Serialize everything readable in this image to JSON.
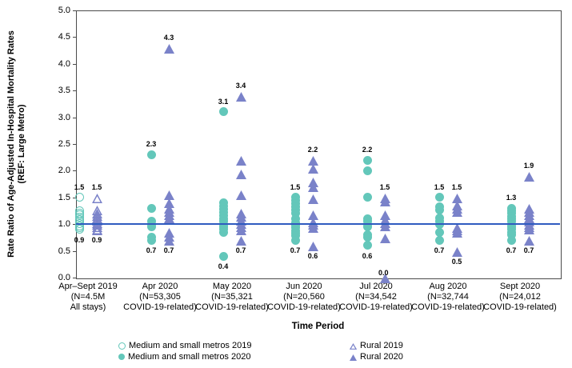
{
  "chart_data": {
    "type": "scatter",
    "title": "",
    "ylabel_line1": "Rate Ratio of Age-Adjusted In-Hospital Mortality Rates",
    "ylabel_line2": "(REF: Large Metro)",
    "xlabel": "Time Period",
    "ylim": [
      0.0,
      5.0
    ],
    "yticks": [
      "5.0",
      "4.5",
      "4.0",
      "3.5",
      "3.0",
      "2.5",
      "2.0",
      "1.5",
      "1.0",
      "0.5",
      "0.0"
    ],
    "reference_line_y": 1.0,
    "grid": false,
    "legend_position": "bottom",
    "colors": {
      "metro": "#63c7ba",
      "rural": "#7a82c9",
      "reference_line": "#2f5bc0",
      "axis": "#4a4a4a"
    },
    "series_styles": {
      "metro-2019": {
        "marker": "circle",
        "filled": false,
        "color_key": "metro"
      },
      "metro-2020": {
        "marker": "circle",
        "filled": true,
        "color_key": "metro"
      },
      "rural-2019": {
        "marker": "triangle",
        "filled": false,
        "color_key": "rural"
      },
      "rural-2020": {
        "marker": "triangle",
        "filled": true,
        "color_key": "rural"
      }
    },
    "legend": [
      {
        "series": "metro-2019",
        "label": "Medium and small metros 2019"
      },
      {
        "series": "metro-2020",
        "label": "Medium and small metros 2020"
      },
      {
        "series": "rural-2019",
        "label": "Rural 2019"
      },
      {
        "series": "rural-2020",
        "label": "Rural 2020"
      }
    ],
    "groups": [
      {
        "label_lines": [
          "Apr–Sept 2019",
          "(N=4.5M",
          "All stays)"
        ],
        "series": [
          {
            "id": "metro-2019",
            "values": [
              1.5,
              1.25,
              1.21,
              1.17,
              1.13,
              1.09,
              1.05,
              1.01,
              0.97,
              0.93,
              0.9
            ],
            "max_label": "1.5",
            "min_label": "0.9"
          },
          {
            "id": "rural-2019",
            "values": [
              1.5,
              1.27,
              1.22,
              1.17,
              1.12,
              1.08,
              1.04,
              1.0,
              0.96,
              0.92,
              0.9
            ],
            "max_label": "1.5",
            "min_label": "0.9"
          }
        ]
      },
      {
        "label_lines": [
          "Apr 2020",
          "(N=53,305",
          "COVID-19-related)"
        ],
        "series": [
          {
            "id": "metro-2020",
            "values": [
              2.3,
              1.3,
              1.05,
              1.0,
              0.95,
              0.75,
              0.7
            ],
            "max_label": "2.3",
            "min_label": "0.7"
          },
          {
            "id": "rural-2020",
            "values": [
              4.3,
              1.55,
              1.4,
              1.3,
              1.24,
              1.18,
              1.12,
              0.85,
              0.78,
              0.7
            ],
            "max_label": "4.3",
            "min_label": "0.7"
          }
        ]
      },
      {
        "label_lines": [
          "May 2020",
          "(N=35,321",
          "COVID-19-related)"
        ],
        "series": [
          {
            "id": "metro-2020",
            "values": [
              3.1,
              1.4,
              1.34,
              1.28,
              1.22,
              1.16,
              1.1,
              1.05,
              1.0,
              0.95,
              0.9,
              0.85,
              0.4
            ],
            "max_label": "3.1",
            "min_label": "0.4"
          },
          {
            "id": "rural-2020",
            "values": [
              3.4,
              2.2,
              1.95,
              1.55,
              1.22,
              1.15,
              1.08,
              1.02,
              0.96,
              0.9,
              0.7
            ],
            "max_label": "3.4",
            "min_label": "0.7"
          }
        ]
      },
      {
        "label_lines": [
          "Jun 2020",
          "(N=20,560",
          "COVID-19-related)"
        ],
        "series": [
          {
            "id": "metro-2020",
            "values": [
              1.5,
              1.44,
              1.38,
              1.32,
              1.26,
              1.2,
              1.1,
              1.03,
              0.98,
              0.93,
              0.88,
              0.83,
              0.78,
              0.7
            ],
            "max_label": "1.5",
            "min_label": "0.7"
          },
          {
            "id": "rural-2020",
            "values": [
              2.2,
              2.05,
              1.8,
              1.7,
              1.48,
              1.18,
              1.05,
              1.0,
              0.95,
              0.6
            ],
            "max_label": "2.2",
            "min_label": "0.6"
          }
        ]
      },
      {
        "label_lines": [
          "Jul 2020",
          "(N=34,542",
          "COVID-19-related)"
        ],
        "series": [
          {
            "id": "metro-2020",
            "values": [
              2.2,
              2.0,
              1.5,
              1.1,
              1.05,
              1.0,
              0.95,
              0.8,
              0.75,
              0.6
            ],
            "max_label": "2.2",
            "min_label": "0.6"
          },
          {
            "id": "rural-2020",
            "values": [
              1.5,
              1.44,
              1.18,
              1.1,
              1.04,
              0.98,
              0.75,
              0.0
            ],
            "max_label": "1.5",
            "min_label": "0.0",
            "min_label_side": "right"
          }
        ]
      },
      {
        "label_lines": [
          "Aug 2020",
          "(N=32,744",
          "COVID-19-related)"
        ],
        "series": [
          {
            "id": "metro-2020",
            "values": [
              1.5,
              1.32,
              1.26,
              1.12,
              1.06,
              1.0,
              0.85,
              0.7
            ],
            "max_label": "1.5",
            "min_label": "0.7"
          },
          {
            "id": "rural-2020",
            "values": [
              1.5,
              1.36,
              1.3,
              1.24,
              0.95,
              0.9,
              0.85,
              0.5
            ],
            "max_label": "1.5",
            "min_label": "0.5"
          }
        ]
      },
      {
        "label_lines": [
          "Sept 2020",
          "(N=24,012",
          "COVID-19-related)"
        ],
        "series": [
          {
            "id": "metro-2020",
            "values": [
              1.3,
              1.25,
              1.2,
              1.15,
              1.1,
              1.05,
              1.0,
              0.95,
              0.9,
              0.85,
              0.8,
              0.7
            ],
            "max_label": "1.3",
            "min_label": "0.7"
          },
          {
            "id": "rural-2020",
            "values": [
              1.9,
              1.3,
              1.24,
              1.18,
              1.12,
              1.06,
              1.01,
              0.96,
              0.91,
              0.7
            ],
            "max_label": "1.9",
            "min_label": "0.7"
          }
        ]
      }
    ]
  }
}
